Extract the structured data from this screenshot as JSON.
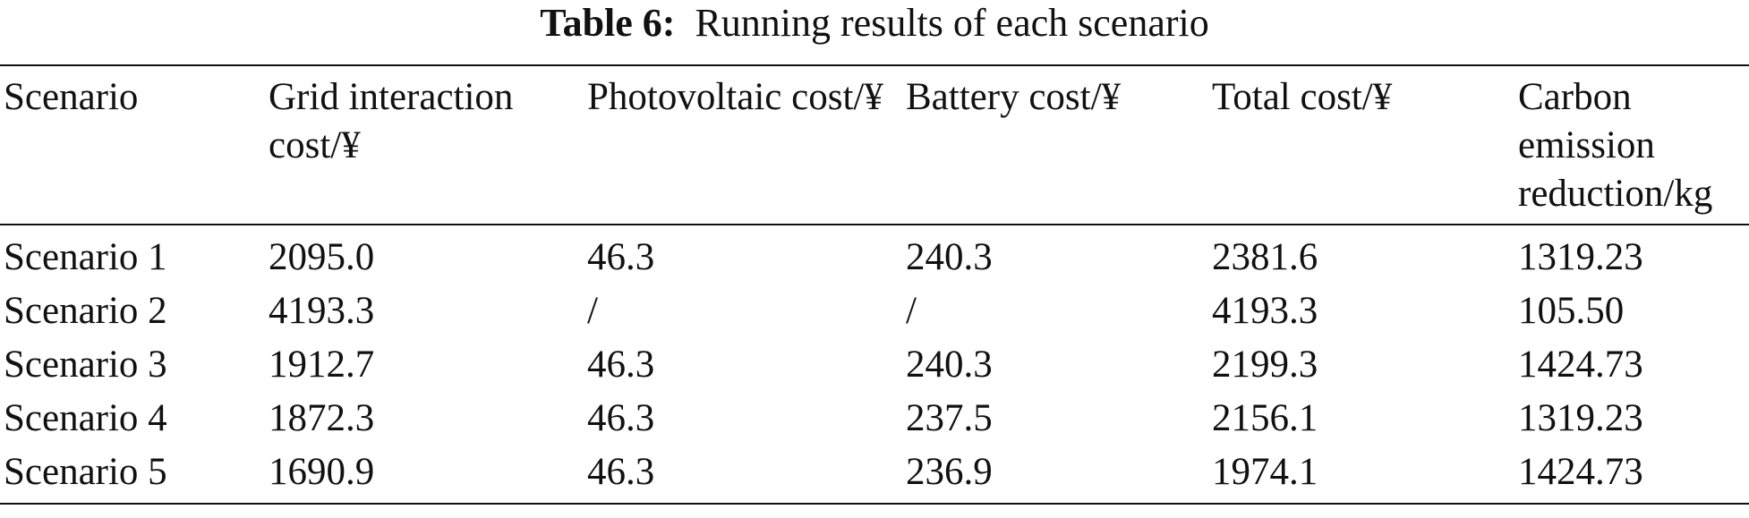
{
  "caption": {
    "label": "Table 6:",
    "text": "Running results of each scenario"
  },
  "table": {
    "headers": [
      "Scenario",
      "Grid interaction cost/¥",
      "Photovoltaic cost/¥",
      "Battery cost/¥",
      "Total cost/¥",
      "Carbon emission reduction/kg"
    ],
    "rows": [
      [
        "Scenario 1",
        "2095.0",
        "46.3",
        "240.3",
        "2381.6",
        "1319.23"
      ],
      [
        "Scenario 2",
        "4193.3",
        "/",
        "/",
        "4193.3",
        "105.50"
      ],
      [
        "Scenario 3",
        "1912.7",
        "46.3",
        "240.3",
        "2199.3",
        "1424.73"
      ],
      [
        "Scenario 4",
        "1872.3",
        "46.3",
        "237.5",
        "2156.1",
        "1319.23"
      ],
      [
        "Scenario 5",
        "1690.9",
        "46.3",
        "236.9",
        "1974.1",
        "1424.73"
      ]
    ]
  }
}
